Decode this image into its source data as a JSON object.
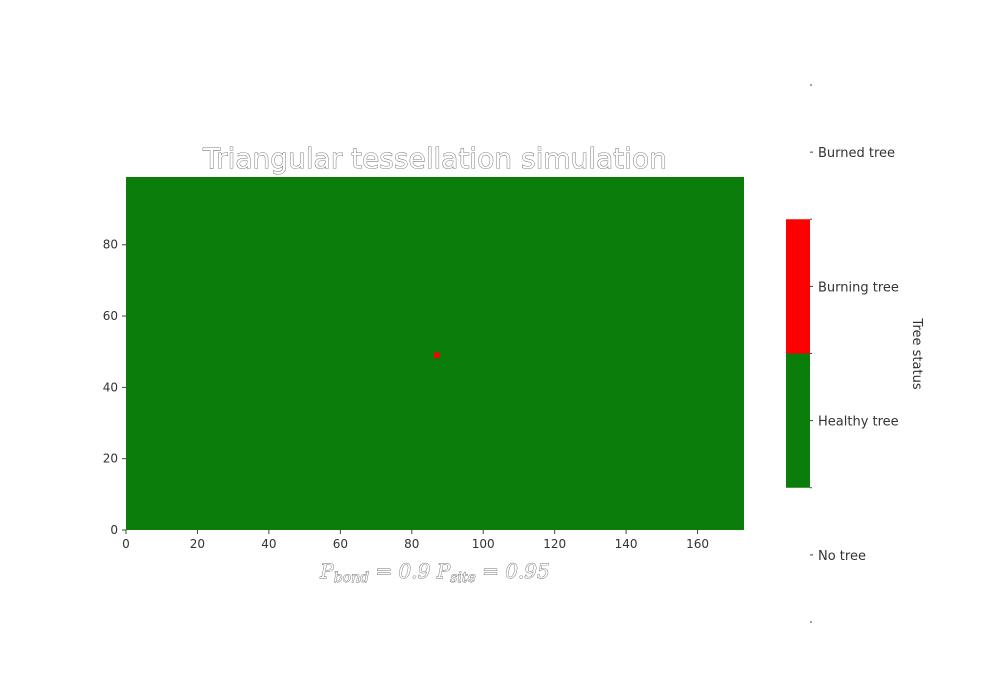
{
  "chart_data": {
    "type": "heatmap",
    "title": "Triangular  tessellation simulation",
    "xlabel": "P_bond = 0.9  P_site = 0.95",
    "xlabel_parts": {
      "bond_symbol": "P",
      "bond_sub": "bond",
      "bond_value": " = 0.9  ",
      "site_symbol": "P",
      "site_sub": "site",
      "site_value": " = 0.95"
    },
    "ylabel": "",
    "xlim": [
      0,
      173
    ],
    "ylim": [
      0,
      99
    ],
    "xticks": [
      0,
      20,
      40,
      60,
      80,
      100,
      120,
      140,
      160
    ],
    "yticks": [
      0,
      20,
      40,
      60,
      80
    ],
    "background_state": "Healthy tree",
    "cells": [
      {
        "x": 87,
        "y": 49,
        "state": "Burning tree"
      }
    ],
    "colorbar": {
      "label": "Tree status",
      "categories": [
        {
          "label": "No tree",
          "color": "#ffffff"
        },
        {
          "label": "Healthy tree",
          "color": "#0a7d0a"
        },
        {
          "label": "Burning tree",
          "color": "#ff0000"
        },
        {
          "label": "Burned tree",
          "color": "#ffffff"
        }
      ]
    },
    "grid": false
  }
}
